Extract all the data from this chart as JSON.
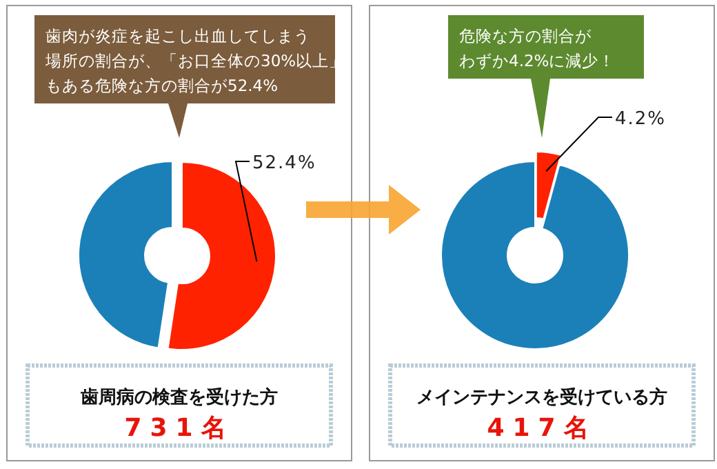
{
  "chart_data": [
    {
      "type": "donut",
      "categories": [
        null,
        null
      ],
      "values": [
        52.4,
        47.6
      ],
      "colors": [
        "#ff2200",
        "#1b80b8"
      ],
      "value_labels": [
        "52.4%",
        null
      ],
      "annotations": [
        "歯肉が炎症を起こし出血してしまう",
        "場所の割合が、「お口全体の30%以上」",
        "もある危険な方の割合が52.4%",
        "歯周病の検査を受けた方",
        "731名"
      ]
    },
    {
      "type": "donut",
      "categories": [
        null,
        null
      ],
      "values": [
        4.2,
        95.8
      ],
      "colors": [
        "#ff2200",
        "#1b80b8"
      ],
      "value_labels": [
        "4.2%",
        null
      ],
      "annotations": [
        "危険な方の割合が",
        "わずか4.2%に減少！",
        "メインテナンスを受けている方",
        "417名"
      ]
    }
  ]
}
